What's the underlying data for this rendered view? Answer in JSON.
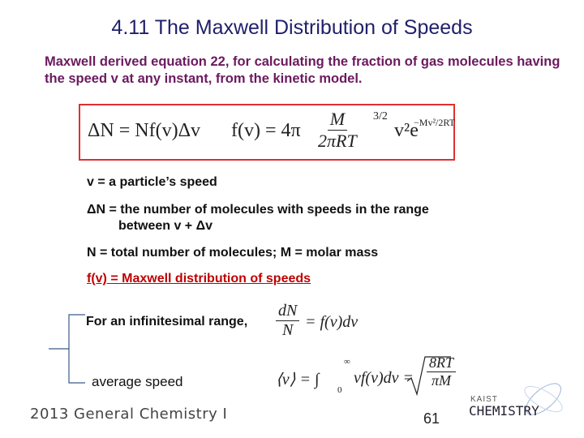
{
  "title": "4.11 The Maxwell Distribution of Speeds",
  "intro": "Maxwell derived equation 22, for calculating the fraction of gas molecules having the speed v at any instant, from the kinetic model.",
  "equation": {
    "left": "ΔN = Nf(v)Δv",
    "f_prefix": "f(v) = 4π",
    "numerator": "M",
    "denominator": "2πRT",
    "power": "3/2",
    "tail": "v²e",
    "exponent": "−Mv²/2RT"
  },
  "definitions": [
    "v = a particle’s speed",
    "ΔN = the number of molecules with speeds in the range",
    "between v + Δv",
    "N = total number of molecules; M = molar mass",
    "f(v) = Maxwell distribution of speeds"
  ],
  "infinitesimal": {
    "label": "For an infinitesimal range,",
    "numerator": "dN",
    "denominator": "N",
    "rhs": "= f(v)dv"
  },
  "average": {
    "label": "average speed",
    "lhs": "⟨v⟩ = ∫",
    "upper": "∞",
    "lower": "0",
    "integrand": "vf(v)dv =",
    "numerator": "8RT",
    "denominator": "πM"
  },
  "footer": "2013 General Chemistry I",
  "page_number": "61",
  "logo": {
    "top": "KAIST",
    "bottom": "CHEMISTRY"
  }
}
